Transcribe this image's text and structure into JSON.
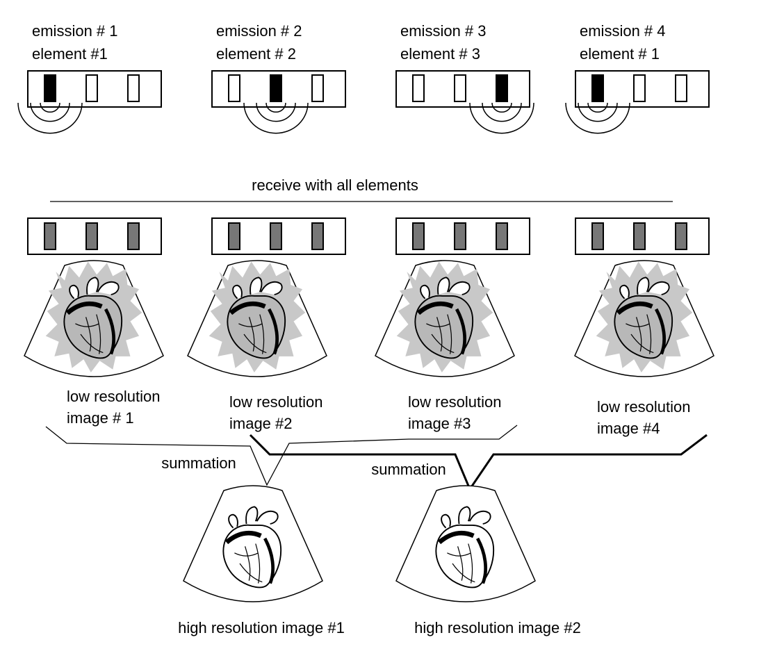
{
  "emissions": [
    {
      "emission": "emission # 1",
      "element": "element #1",
      "active": 0
    },
    {
      "emission": "emission # 2",
      "element": "element # 2",
      "active": 1
    },
    {
      "emission": "emission # 3",
      "element": "element # 3",
      "active": 2
    },
    {
      "emission": "emission # 4",
      "element": "element # 1",
      "active": 0
    }
  ],
  "receive_label": "receive with all elements",
  "low_res_images": [
    {
      "line1": "low resolution",
      "line2": "image # 1"
    },
    {
      "line1": "low resolution",
      "line2": "image #2"
    },
    {
      "line1": "low resolution",
      "line2": "image #3"
    },
    {
      "line1": "low resolution",
      "line2": "image #4"
    }
  ],
  "summations": [
    "summation",
    "summation"
  ],
  "high_res_images": [
    "high resolution image #1",
    "high resolution image #2"
  ],
  "colors": {
    "active_element": "#000000",
    "inactive_element": "#ffffff",
    "receive_element": "#777777",
    "speckle": "#c8c8c8",
    "heart_fill": "#b8b8b8",
    "heart_dark": "#222222"
  }
}
